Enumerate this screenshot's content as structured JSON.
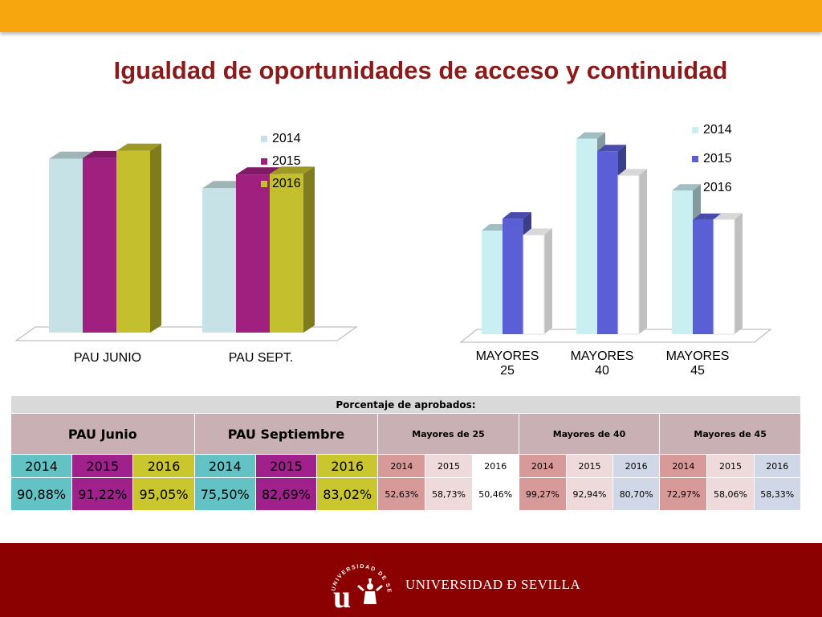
{
  "title": "Igualdad de oportunidades de acceso y continuidad",
  "chart_data": [
    {
      "type": "bar",
      "categories": [
        "PAU JUNIO",
        "PAU SEPT."
      ],
      "series": [
        {
          "name": "2014",
          "values": [
            90.88,
            75.5
          ],
          "color": "#c6e2e6"
        },
        {
          "name": "2015",
          "values": [
            91.22,
            82.69
          ],
          "color": "#a0207f"
        },
        {
          "name": "2016",
          "values": [
            95.05,
            83.02
          ],
          "color": "#c4bf2d"
        }
      ],
      "legend": "top-right"
    },
    {
      "type": "bar",
      "categories": [
        "MAYORES 25",
        "MAYORES 40",
        "MAYORES 45"
      ],
      "series": [
        {
          "name": "2014",
          "values": [
            52.63,
            99.27,
            72.97
          ],
          "color": "#c9eff2"
        },
        {
          "name": "2015",
          "values": [
            58.73,
            92.94,
            58.06
          ],
          "color": "#5b5fd6"
        },
        {
          "name": "2016",
          "values": [
            50.46,
            80.7,
            58.33
          ],
          "color": "#ffffff"
        }
      ],
      "legend": "top-right"
    }
  ],
  "table": {
    "caption": "Porcentaje de aprobados:",
    "groups": [
      "PAU Junio",
      "PAU Septiembre",
      "Mayores de 25",
      "Mayores de 40",
      "Mayores de 45"
    ],
    "years": [
      "2014",
      "2015",
      "2016"
    ],
    "values": [
      [
        "90,88%",
        "91,22%",
        "95,05%"
      ],
      [
        "75,50%",
        "82,69%",
        "83,02%"
      ],
      [
        "52,63%",
        "58,73%",
        "50,46%"
      ],
      [
        "99,27%",
        "92,94%",
        "80,70%"
      ],
      [
        "72,97%",
        "58,06%",
        "58,33%"
      ]
    ]
  },
  "footer": {
    "logo_text": "UNIVERSIDAD Ð SEVILLA",
    "seal_text": "UNIVERSIDAD DE SEVILLA"
  }
}
